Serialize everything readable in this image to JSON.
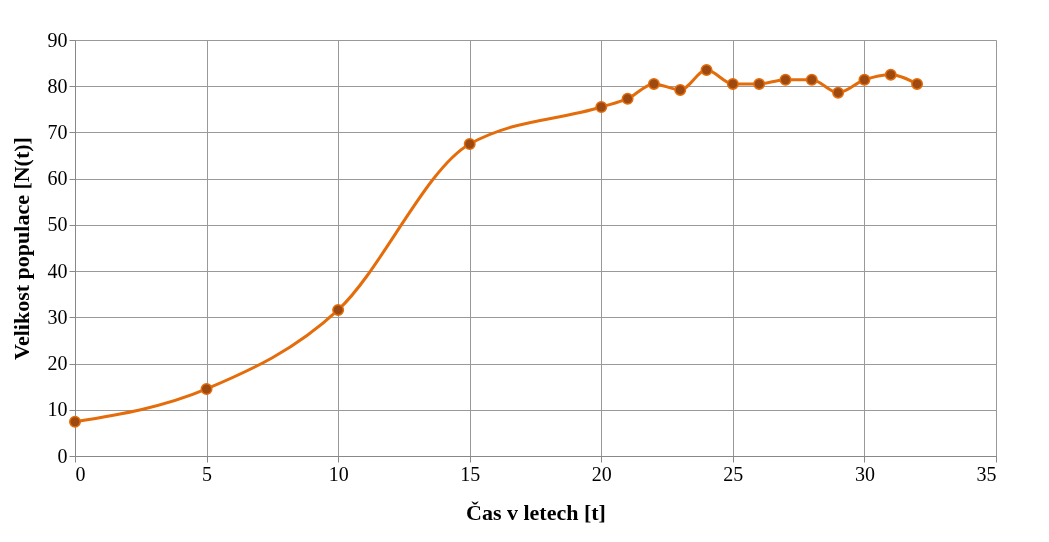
{
  "chart_data": {
    "type": "line",
    "xlabel": "Čas v letech [t]",
    "ylabel": "Velikost  populace [N(t)]",
    "x": [
      0,
      5,
      10,
      15,
      20,
      21,
      22,
      23,
      24,
      25,
      26,
      27,
      28,
      29,
      30,
      31,
      32
    ],
    "series": [
      {
        "color": "#e46c0a",
        "values": [
          7.4,
          14.5,
          31.6,
          67.5,
          75.5,
          77.3,
          80.5,
          79.2,
          83.5,
          80.5,
          80.5,
          81.4,
          81.4,
          78.6,
          81.4,
          82.5,
          80.5
        ]
      }
    ],
    "xlim": [
      0,
      35
    ],
    "xticks": [
      0,
      5,
      10,
      15,
      20,
      25,
      30,
      35
    ],
    "ylim": [
      0,
      90
    ],
    "yticks": [
      0,
      10,
      20,
      30,
      40,
      50,
      60,
      70,
      80,
      90
    ],
    "grid": true,
    "marker": "circle"
  }
}
